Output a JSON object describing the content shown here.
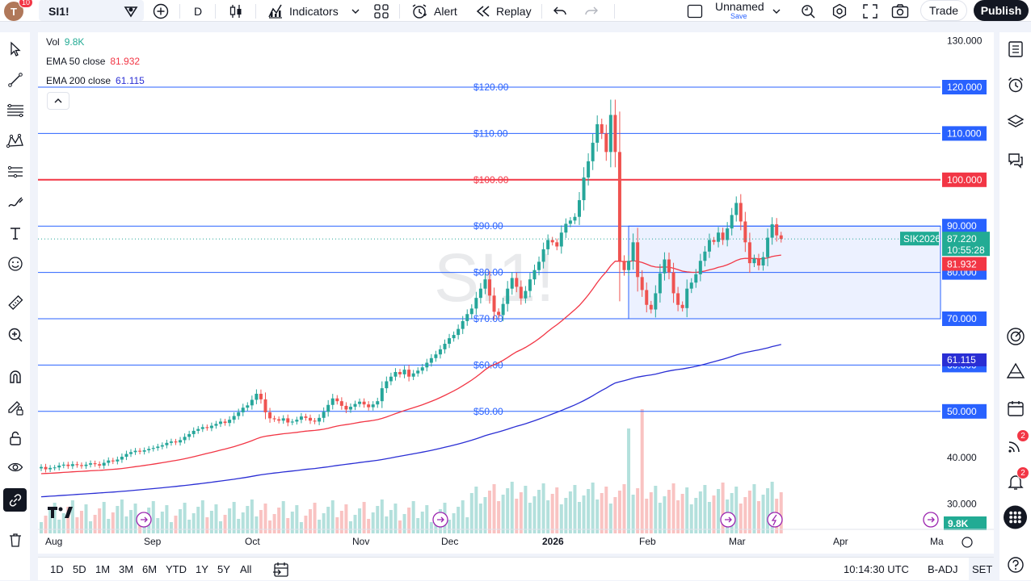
{
  "header": {
    "avatar_letter": "T",
    "avatar_badge": "10",
    "symbol": "SI1!",
    "interval": "D",
    "indicators_label": "Indicators",
    "alert_label": "Alert",
    "replay_label": "Replay",
    "layout_name": "Unnamed",
    "layout_save": "Save",
    "trade_label": "Trade",
    "publish_label": "Publish"
  },
  "legend": {
    "vol_label": "Vol",
    "vol_value": "9.8K",
    "ema50_label": "EMA 50 close",
    "ema50_value": "81.932",
    "ema200_label": "EMA 200 close",
    "ema200_value": "61.115"
  },
  "watermark": "SI1!",
  "price_axis": {
    "ticks": [
      "130.000",
      "40.000",
      "30.000"
    ],
    "level_tags": [
      "120.000",
      "110.000",
      "100.000",
      "90.000",
      "80.000",
      "70.000",
      "60.000",
      "50.000"
    ],
    "symbol_tag": "SIK2026",
    "last_price": "87.220",
    "countdown": "10:55:28",
    "ema50_tag": "81.932",
    "ema200_tag": "61.115",
    "volume_tag": "9.8K"
  },
  "chart_labels": {
    "levels": [
      "$120.00",
      "$110.00",
      "$100.00",
      "$90.00",
      "$80.00",
      "$70.00",
      "$60.00",
      "$50.00"
    ]
  },
  "time_axis": {
    "labels": [
      "Aug",
      "Sep",
      "Oct",
      "Nov",
      "Dec",
      "2026",
      "Feb",
      "Mar",
      "Apr",
      "Ma"
    ]
  },
  "bottom": {
    "ranges": [
      "1D",
      "5D",
      "1M",
      "3M",
      "6M",
      "YTD",
      "1Y",
      "5Y",
      "All"
    ],
    "clock": "10:14:30 UTC",
    "adjust": "B-ADJ",
    "session": "SET"
  },
  "right_badges": [
    "2",
    "2"
  ],
  "colors": {
    "up": "#26a69a",
    "down": "#ef5350",
    "level_line": "#2962ff",
    "key_level": "#f23645",
    "ema50": "#f23645",
    "ema200": "#2a2ed4",
    "zone": "#2962ff"
  },
  "chart_data": {
    "type": "candlestick",
    "symbol": "SI1!",
    "contract": "SIK2026",
    "timeframe": "1D",
    "price_range": [
      25,
      132
    ],
    "horizontal_levels": [
      120,
      110,
      100,
      90,
      80,
      70,
      60,
      50
    ],
    "key_level": 100,
    "zone": {
      "from_price": 70,
      "to_price": 90,
      "start_month": "Jan 2026"
    },
    "ema50_last": 81.932,
    "ema200_last": 61.115,
    "last_price": 87.22,
    "last_volume": "9.8K",
    "x_months": [
      "Aug",
      "Sep",
      "Oct",
      "Nov",
      "Dec",
      "2026",
      "Feb",
      "Mar",
      "Apr",
      "Ma"
    ],
    "closes": [
      38,
      37.5,
      37.8,
      37.9,
      38.3,
      38.5,
      38.2,
      38.6,
      38.4,
      38.2,
      38.5,
      38.8,
      38.6,
      38.3,
      38.9,
      39.4,
      39.2,
      39.6,
      40.2,
      40.8,
      41.2,
      41.5,
      41.3,
      41.6,
      41.9,
      42.1,
      42.4,
      42.7,
      43.2,
      43.5,
      43.3,
      43.8,
      44.5,
      45.1,
      45.8,
      46.2,
      46.6,
      46.4,
      46.9,
      47.3,
      47.8,
      47.5,
      48.2,
      49.0,
      49.8,
      50.8,
      51.3,
      52.5,
      53.8,
      52.6,
      49.8,
      48.5,
      48.3,
      48.0,
      48.5,
      47.6,
      47.8,
      48.2,
      48.9,
      48.6,
      48.0,
      47.8,
      48.6,
      49.9,
      51.4,
      52.8,
      52.2,
      51.2,
      50.4,
      51.0,
      51.6,
      52.1,
      51.5,
      50.9,
      51.5,
      52.2,
      55.0,
      56.5,
      57.5,
      58.5,
      58.0,
      59.0,
      57.5,
      58.2,
      58.8,
      59.5,
      60.5,
      61.5,
      62.3,
      63.4,
      64.6,
      65.8,
      66.5,
      67.8,
      69.5,
      71.0,
      72.2,
      74.5,
      76.5,
      78.5,
      75.0,
      71.5,
      70.8,
      73.2,
      76.5,
      78.8,
      76.9,
      74.4,
      76.0,
      78.5,
      80.5,
      82.3,
      85.0,
      87.0,
      86.5,
      85.6,
      88.6,
      90.5,
      91.2,
      92.0,
      95.6,
      100.5,
      104.0,
      108.0,
      112.0,
      110.0,
      106.0,
      114.0,
      106.0,
      82.5,
      80.5,
      82.5,
      86.5,
      79.0,
      76.2,
      73.0,
      72.0,
      75.5,
      79.8,
      82.8,
      80.0,
      75.5,
      73.0,
      72.3,
      76.5,
      77.8,
      79.6,
      82.5,
      84.5,
      87.0,
      86.6,
      88.6,
      87.0,
      89.5,
      92.4,
      95.0,
      91.0,
      86.5,
      82.0,
      83.0,
      81.5,
      83.3,
      87.5,
      90.4,
      88.0,
      87.22
    ],
    "ema50_series_desc": "rises from ~37 in Aug to ~81.9 now",
    "ema200_series_desc": "rises from ~32 in Aug to ~61.1 now"
  }
}
